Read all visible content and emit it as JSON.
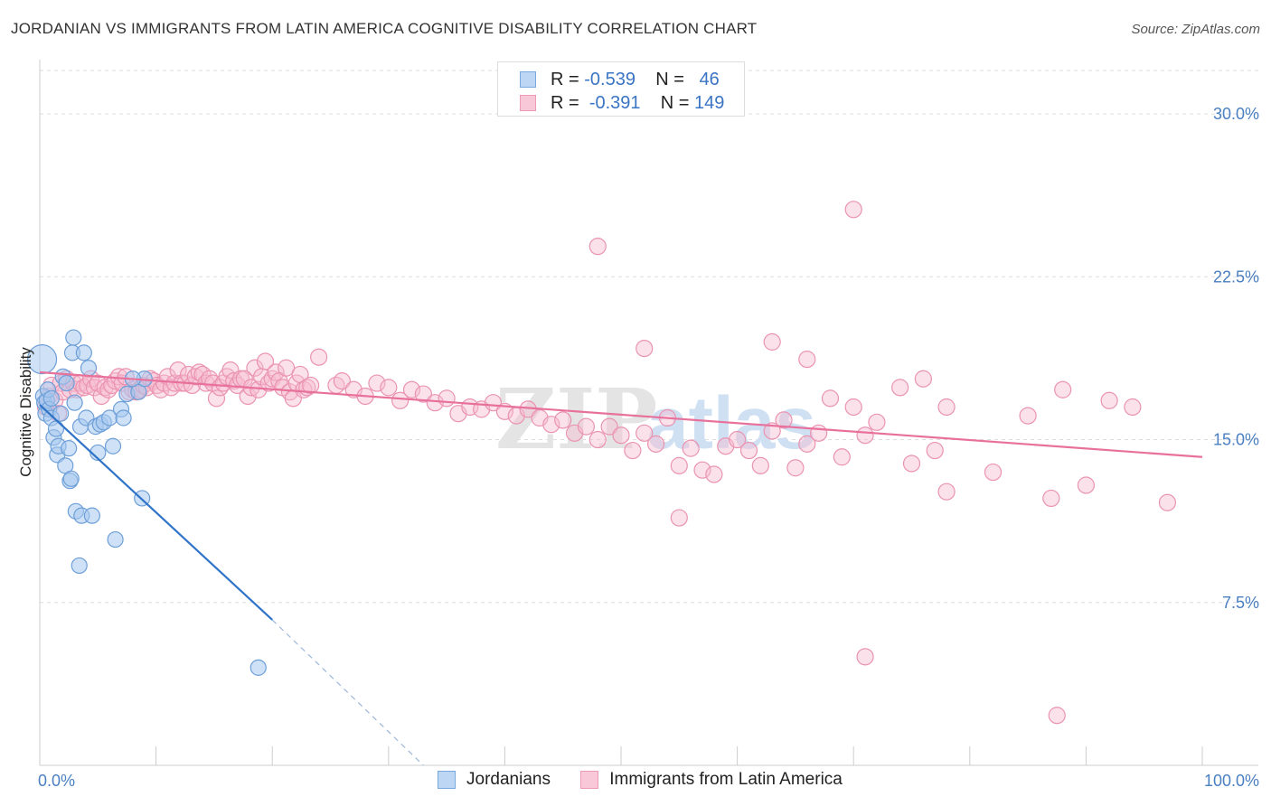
{
  "header": {
    "title": "JORDANIAN VS IMMIGRANTS FROM LATIN AMERICA COGNITIVE DISABILITY CORRELATION CHART",
    "source": "Source: ZipAtlas.com"
  },
  "legend_top": {
    "rows": [
      {
        "r_label": "R =",
        "r_value": "-0.539",
        "n_label": "N =",
        "n_value": "46"
      },
      {
        "r_label": "R =",
        "r_value": "-0.391",
        "n_label": "N =",
        "n_value": "149"
      }
    ]
  },
  "watermark": {
    "zip": "ZIP",
    "atlas": "atlas"
  },
  "colors": {
    "blue_fill": "#a8c8ee",
    "blue_stroke": "#6d9fd8",
    "blue_line": "#2f74c8",
    "pink_fill": "#f6bcd0",
    "pink_stroke": "#ea93b1",
    "pink_line": "#e8719c",
    "grid": "#dddddd",
    "tick_label": "#4a7fc1"
  },
  "chart_data": {
    "type": "scatter",
    "title": "JORDANIAN VS IMMIGRANTS FROM LATIN AMERICA COGNITIVE DISABILITY CORRELATION CHART",
    "xlabel": "",
    "ylabel": "Cognitive Disability",
    "xlim": [
      0,
      100
    ],
    "ylim": [
      0,
      32
    ],
    "x_tick_labels": [
      "0.0%",
      "100.0%"
    ],
    "y_ticks": [
      7.5,
      15.0,
      22.5,
      30.0
    ],
    "y_tick_labels": [
      "7.5%",
      "15.0%",
      "22.5%",
      "30.0%"
    ],
    "grid": true,
    "legend_position": "top-center",
    "series": [
      {
        "name": "Jordanians",
        "color": "blue",
        "r": -0.539,
        "n": 46,
        "trend": {
          "x0": 0,
          "y0": 16.6,
          "x1": 20,
          "y1": 6.7,
          "dash_to_x": 33,
          "dash_to_y": 0
        },
        "points": [
          [
            0.2,
            18.7
          ],
          [
            0.3,
            17.0
          ],
          [
            0.4,
            16.7
          ],
          [
            0.5,
            16.2
          ],
          [
            0.6,
            16.8
          ],
          [
            0.7,
            17.3
          ],
          [
            0.8,
            16.4
          ],
          [
            1.0,
            16.0
          ],
          [
            1.2,
            15.1
          ],
          [
            1.4,
            15.5
          ],
          [
            1.5,
            14.3
          ],
          [
            1.6,
            14.7
          ],
          [
            1.8,
            16.2
          ],
          [
            2.0,
            17.9
          ],
          [
            2.2,
            13.8
          ],
          [
            2.3,
            17.6
          ],
          [
            2.5,
            14.6
          ],
          [
            2.6,
            13.1
          ],
          [
            2.7,
            13.2
          ],
          [
            2.8,
            19.0
          ],
          [
            2.9,
            19.7
          ],
          [
            3.0,
            16.7
          ],
          [
            3.1,
            11.7
          ],
          [
            3.4,
            9.2
          ],
          [
            3.5,
            15.6
          ],
          [
            3.6,
            11.5
          ],
          [
            3.8,
            19.0
          ],
          [
            4.0,
            16.0
          ],
          [
            4.2,
            18.3
          ],
          [
            4.5,
            11.5
          ],
          [
            4.8,
            15.6
          ],
          [
            5.0,
            14.4
          ],
          [
            5.2,
            15.7
          ],
          [
            5.5,
            15.8
          ],
          [
            6.0,
            16.0
          ],
          [
            6.3,
            14.7
          ],
          [
            6.5,
            10.4
          ],
          [
            7.0,
            16.4
          ],
          [
            7.2,
            16.0
          ],
          [
            7.5,
            17.1
          ],
          [
            8.5,
            17.2
          ],
          [
            8.8,
            12.3
          ],
          [
            9.0,
            17.8
          ],
          [
            8.0,
            17.8
          ],
          [
            18.8,
            4.5
          ],
          [
            1.0,
            16.9
          ]
        ]
      },
      {
        "name": "Immigrants from Latin America",
        "color": "pink",
        "r": -0.391,
        "n": 149,
        "trend": {
          "x0": 0,
          "y0": 18.1,
          "x1": 100,
          "y1": 14.2
        },
        "points": [
          [
            0.5,
            16.5
          ],
          [
            0.8,
            17.0
          ],
          [
            1.0,
            17.5
          ],
          [
            1.3,
            16.8
          ],
          [
            1.6,
            16.2
          ],
          [
            1.8,
            17.6
          ],
          [
            2.0,
            17.2
          ],
          [
            2.3,
            17.8
          ],
          [
            2.6,
            17.3
          ],
          [
            2.9,
            17.6
          ],
          [
            3.2,
            17.3
          ],
          [
            3.5,
            17.6
          ],
          [
            3.8,
            17.4
          ],
          [
            4.1,
            17.5
          ],
          [
            4.4,
            17.8
          ],
          [
            4.7,
            17.4
          ],
          [
            5.0,
            17.6
          ],
          [
            5.3,
            17.0
          ],
          [
            5.6,
            17.4
          ],
          [
            5.9,
            17.3
          ],
          [
            6.2,
            17.5
          ],
          [
            6.5,
            17.7
          ],
          [
            6.8,
            17.9
          ],
          [
            7.1,
            17.6
          ],
          [
            7.4,
            17.9
          ],
          [
            7.7,
            17.2
          ],
          [
            8.0,
            17.3
          ],
          [
            8.3,
            17.2
          ],
          [
            8.6,
            17.3
          ],
          [
            8.9,
            17.5
          ],
          [
            9.2,
            17.4
          ],
          [
            9.5,
            17.8
          ],
          [
            9.8,
            17.7
          ],
          [
            10.1,
            17.5
          ],
          [
            10.4,
            17.3
          ],
          [
            10.7,
            17.6
          ],
          [
            11.0,
            17.9
          ],
          [
            11.3,
            17.4
          ],
          [
            11.6,
            17.6
          ],
          [
            11.9,
            18.2
          ],
          [
            12.2,
            17.6
          ],
          [
            12.5,
            17.6
          ],
          [
            12.8,
            18.0
          ],
          [
            13.1,
            17.5
          ],
          [
            13.4,
            17.9
          ],
          [
            13.7,
            18.1
          ],
          [
            14.0,
            18.0
          ],
          [
            14.3,
            17.6
          ],
          [
            14.6,
            17.8
          ],
          [
            14.9,
            17.6
          ],
          [
            15.2,
            16.9
          ],
          [
            15.5,
            17.4
          ],
          [
            15.8,
            17.6
          ],
          [
            16.1,
            17.9
          ],
          [
            16.4,
            18.2
          ],
          [
            16.7,
            17.7
          ],
          [
            17.0,
            17.5
          ],
          [
            17.3,
            17.8
          ],
          [
            17.6,
            17.8
          ],
          [
            17.9,
            17.0
          ],
          [
            18.2,
            17.4
          ],
          [
            18.5,
            18.3
          ],
          [
            18.8,
            17.3
          ],
          [
            19.1,
            17.9
          ],
          [
            19.4,
            18.6
          ],
          [
            19.7,
            17.6
          ],
          [
            20.0,
            17.8
          ],
          [
            20.3,
            18.1
          ],
          [
            20.6,
            17.7
          ],
          [
            20.9,
            17.4
          ],
          [
            21.2,
            18.3
          ],
          [
            21.5,
            17.2
          ],
          [
            21.8,
            16.9
          ],
          [
            22.1,
            17.6
          ],
          [
            22.4,
            18.0
          ],
          [
            22.7,
            17.3
          ],
          [
            23.0,
            17.4
          ],
          [
            23.3,
            17.5
          ],
          [
            24.0,
            18.8
          ],
          [
            25.5,
            17.5
          ],
          [
            26.0,
            17.7
          ],
          [
            27.0,
            17.3
          ],
          [
            28.0,
            17.0
          ],
          [
            29.0,
            17.6
          ],
          [
            30.0,
            17.4
          ],
          [
            31.0,
            16.8
          ],
          [
            32.0,
            17.3
          ],
          [
            33.0,
            17.1
          ],
          [
            34.0,
            16.7
          ],
          [
            35.0,
            16.9
          ],
          [
            36.0,
            16.2
          ],
          [
            37.0,
            16.5
          ],
          [
            38.0,
            16.4
          ],
          [
            39.0,
            16.7
          ],
          [
            40.0,
            16.3
          ],
          [
            41.0,
            16.1
          ],
          [
            42.0,
            16.4
          ],
          [
            43.0,
            16.0
          ],
          [
            44.0,
            15.7
          ],
          [
            45.0,
            15.9
          ],
          [
            46.0,
            15.3
          ],
          [
            47.0,
            15.6
          ],
          [
            48.0,
            15.0
          ],
          [
            49.0,
            15.6
          ],
          [
            50.0,
            15.2
          ],
          [
            51.0,
            14.5
          ],
          [
            52.0,
            15.3
          ],
          [
            53.0,
            14.8
          ],
          [
            54.0,
            16.0
          ],
          [
            55.0,
            13.8
          ],
          [
            56.0,
            14.6
          ],
          [
            57.0,
            13.6
          ],
          [
            58.0,
            13.4
          ],
          [
            59.0,
            14.7
          ],
          [
            60.0,
            15.0
          ],
          [
            61.0,
            14.5
          ],
          [
            62.0,
            13.8
          ],
          [
            63.0,
            15.4
          ],
          [
            64.0,
            15.9
          ],
          [
            65.0,
            13.7
          ],
          [
            66.0,
            14.8
          ],
          [
            67.0,
            15.3
          ],
          [
            68.0,
            16.9
          ],
          [
            69.0,
            14.2
          ],
          [
            70.0,
            16.5
          ],
          [
            71.0,
            15.2
          ],
          [
            72.0,
            15.8
          ],
          [
            75.0,
            13.9
          ],
          [
            77.0,
            14.5
          ],
          [
            76.0,
            17.8
          ],
          [
            74.0,
            17.4
          ],
          [
            78.0,
            16.5
          ],
          [
            82.0,
            13.5
          ],
          [
            85.0,
            16.1
          ],
          [
            87.0,
            12.3
          ],
          [
            90.0,
            12.9
          ],
          [
            88.0,
            17.3
          ],
          [
            92.0,
            16.8
          ],
          [
            78.0,
            12.6
          ],
          [
            52.0,
            19.2
          ],
          [
            48.0,
            23.9
          ],
          [
            70.0,
            25.6
          ],
          [
            63.0,
            19.5
          ],
          [
            66.0,
            18.7
          ],
          [
            55.0,
            11.4
          ],
          [
            71.0,
            5.0
          ],
          [
            87.5,
            2.3
          ],
          [
            94.0,
            16.5
          ],
          [
            97.0,
            12.1
          ]
        ]
      }
    ]
  },
  "legend_bottom": {
    "items": [
      {
        "label": "Jordanians"
      },
      {
        "label": "Immigrants from Latin America"
      }
    ]
  }
}
